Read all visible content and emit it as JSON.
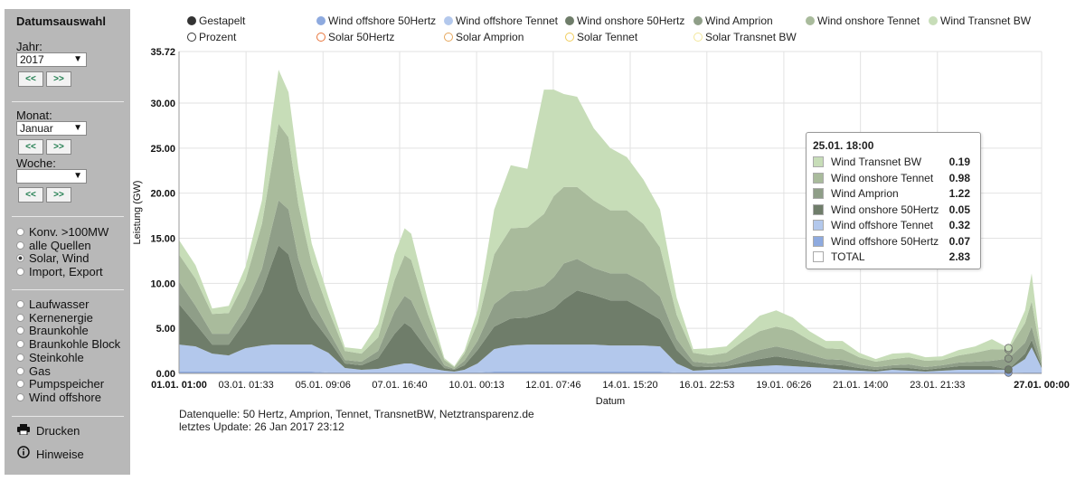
{
  "sidebar": {
    "title": "Datumsauswahl",
    "year_label": "Jahr:",
    "year_value": "2017",
    "month_label": "Monat:",
    "month_value": "Januar",
    "week_label": "Woche:",
    "week_value": "",
    "prev_label": "<<",
    "next_label": ">>",
    "source_options": [
      {
        "label": "Konv. >100MW",
        "checked": false
      },
      {
        "label": "alle Quellen",
        "checked": false
      },
      {
        "label": "Solar, Wind",
        "checked": true
      },
      {
        "label": "Import, Export",
        "checked": false
      }
    ],
    "type_options": [
      "Laufwasser",
      "Kernenergie",
      "Braunkohle",
      "Braunkohle Block",
      "Steinkohle",
      "Gas",
      "Pumpspeicher",
      "Wind offshore"
    ],
    "print_label": "Drucken",
    "hints_label": "Hinweise",
    "print_icon": "printer-icon",
    "hints_icon": "info-icon"
  },
  "legend": [
    {
      "label": "Gestapelt",
      "color": "#333333",
      "filled": true
    },
    {
      "label": "Wind offshore 50Hertz",
      "color": "#8eaadf",
      "filled": true
    },
    {
      "label": "Wind offshore Tennet",
      "color": "#b3c8ec",
      "filled": true
    },
    {
      "label": "Wind onshore 50Hertz",
      "color": "#6f7d6a",
      "filled": true
    },
    {
      "label": "Wind Amprion",
      "color": "#8f9e88",
      "filled": true
    },
    {
      "label": "Wind onshore Tennet",
      "color": "#a9bb9c",
      "filled": true
    },
    {
      "label": "Wind Transnet BW",
      "color": "#c7ddb8",
      "filled": true
    },
    {
      "label": "Prozent",
      "color": "#333333",
      "filled": false
    },
    {
      "label": "Solar 50Hertz",
      "color": "#e8743b",
      "filled": false
    },
    {
      "label": "Solar Amprion",
      "color": "#e6a65a",
      "filled": false
    },
    {
      "label": "Solar Tennet",
      "color": "#f0cc5a",
      "filled": false
    },
    {
      "label": "Solar Transnet BW",
      "color": "#f3e79a",
      "filled": false
    }
  ],
  "tooltip": {
    "title": "25.01. 18:00",
    "rows": [
      {
        "name": "Wind Transnet BW",
        "value": "0.19",
        "color": "#c7ddb8"
      },
      {
        "name": "Wind onshore Tennet",
        "value": "0.98",
        "color": "#a9bb9c"
      },
      {
        "name": "Wind Amprion",
        "value": "1.22",
        "color": "#8f9e88"
      },
      {
        "name": "Wind onshore 50Hertz",
        "value": "0.05",
        "color": "#6f7d6a"
      },
      {
        "name": "Wind offshore Tennet",
        "value": "0.32",
        "color": "#b3c8ec"
      },
      {
        "name": "Wind offshore 50Hertz",
        "value": "0.07",
        "color": "#8eaadf"
      },
      {
        "name": "TOTAL",
        "value": "2.83",
        "color": "#ffffff"
      }
    ]
  },
  "footer": {
    "source": "Datenquelle: 50 Hertz, Amprion, Tennet, TransnetBW, Netztransparenz.de",
    "updated": "letztes Update: 26 Jan 2017 23:12"
  },
  "chart_data": {
    "type": "area",
    "stacked": true,
    "xlabel": "Datum",
    "ylabel": "Leistung (GW)",
    "ylim": [
      0,
      35.72
    ],
    "yticks": [
      "0.00",
      "5.00",
      "10.00",
      "15.00",
      "20.00",
      "25.00",
      "30.00",
      "35.72"
    ],
    "xlim": [
      0,
      26
    ],
    "x_ticks": [
      {
        "label": "01.01. 01:00",
        "x": 0.0,
        "bold": true
      },
      {
        "label": "03.01. 01:33",
        "x": 2.02
      },
      {
        "label": "05.01. 09:06",
        "x": 4.34
      },
      {
        "label": "07.01. 16:40",
        "x": 6.65
      },
      {
        "label": "10.01. 00:13",
        "x": 8.97
      },
      {
        "label": "12.01. 07:46",
        "x": 11.28
      },
      {
        "label": "14.01. 15:20",
        "x": 13.6
      },
      {
        "label": "16.01. 22:53",
        "x": 15.91
      },
      {
        "label": "19.01. 06:26",
        "x": 18.23
      },
      {
        "label": "21.01. 14:00",
        "x": 20.54
      },
      {
        "label": "23.01. 21:33",
        "x": 22.86
      },
      {
        "label": "27.01. 00:00",
        "x": 26.0,
        "bold": true
      }
    ],
    "x": [
      0,
      0.5,
      1,
      1.5,
      2,
      2.5,
      2.8,
      3,
      3.3,
      3.6,
      4,
      4.5,
      5,
      5.5,
      6,
      6.5,
      6.8,
      7,
      7.5,
      8,
      8.3,
      8.6,
      9,
      9.5,
      10,
      10.5,
      11,
      11.3,
      11.6,
      12,
      12.5,
      13,
      13.5,
      14,
      14.5,
      15,
      15.5,
      16,
      16.5,
      17,
      17.5,
      18,
      18.5,
      19,
      19.5,
      20,
      20.5,
      21,
      21.5,
      22,
      22.5,
      23,
      23.5,
      24,
      24.5,
      25,
      25.5,
      25.7,
      26
    ],
    "series": [
      {
        "name": "Wind offshore 50Hertz",
        "color": "#8eaadf",
        "values": [
          0.2,
          0.2,
          0.2,
          0.2,
          0.2,
          0.2,
          0.2,
          0.2,
          0.2,
          0.2,
          0.2,
          0.1,
          0.1,
          0.1,
          0.1,
          0.1,
          0.1,
          0.1,
          0.1,
          0.1,
          0.1,
          0.1,
          0.1,
          0.2,
          0.2,
          0.2,
          0.2,
          0.2,
          0.2,
          0.2,
          0.2,
          0.2,
          0.2,
          0.2,
          0.2,
          0.1,
          0.1,
          0.1,
          0.1,
          0.1,
          0.1,
          0.1,
          0.1,
          0.1,
          0.1,
          0.1,
          0.1,
          0.1,
          0.1,
          0.1,
          0.1,
          0.1,
          0.1,
          0.1,
          0.1,
          0.07,
          0.1,
          0.1,
          0.1
        ]
      },
      {
        "name": "Wind offshore Tennet",
        "color": "#b3c8ec",
        "values": [
          3.0,
          2.8,
          2.0,
          1.8,
          2.6,
          2.9,
          3.0,
          3.0,
          3.0,
          3.0,
          3.0,
          2.2,
          0.5,
          0.3,
          0.4,
          0.8,
          1.0,
          1.0,
          0.5,
          0.2,
          0.1,
          0.3,
          1.0,
          2.5,
          2.9,
          3.0,
          3.0,
          3.0,
          3.0,
          3.0,
          3.0,
          2.9,
          2.9,
          2.9,
          2.8,
          1.0,
          0.2,
          0.3,
          0.4,
          0.6,
          0.7,
          0.8,
          0.7,
          0.6,
          0.5,
          0.3,
          0.2,
          0.1,
          0.3,
          0.2,
          0.1,
          0.2,
          0.3,
          0.3,
          0.3,
          0.32,
          1.5,
          2.8,
          0.5
        ]
      },
      {
        "name": "Wind onshore 50Hertz",
        "color": "#6f7d6a",
        "values": [
          4.5,
          2.5,
          1.0,
          1.2,
          3.0,
          6.0,
          9.0,
          11.0,
          10.0,
          6.0,
          3.0,
          1.5,
          0.5,
          0.5,
          1.2,
          3.5,
          4.5,
          4.0,
          2.0,
          0.3,
          0.2,
          0.5,
          1.5,
          2.5,
          3.0,
          3.0,
          3.5,
          4.0,
          5.0,
          6.0,
          5.5,
          5.0,
          5.0,
          4.0,
          3.0,
          1.5,
          0.5,
          0.3,
          0.3,
          0.5,
          0.8,
          1.0,
          0.8,
          0.6,
          0.4,
          0.5,
          0.3,
          0.2,
          0.2,
          0.3,
          0.2,
          0.3,
          0.4,
          0.4,
          0.4,
          0.05,
          0.6,
          0.8,
          0.2
        ]
      },
      {
        "name": "Wind Amprion",
        "color": "#8f9e88",
        "values": [
          2.5,
          2.0,
          1.2,
          1.2,
          1.5,
          2.5,
          4.0,
          5.0,
          5.0,
          3.5,
          2.0,
          1.0,
          0.4,
          0.4,
          0.8,
          2.5,
          3.0,
          3.0,
          1.5,
          0.3,
          0.1,
          0.5,
          1.0,
          2.5,
          3.0,
          3.0,
          3.0,
          3.5,
          4.0,
          3.5,
          3.0,
          3.0,
          3.0,
          3.0,
          2.5,
          1.2,
          0.5,
          0.4,
          0.5,
          0.8,
          1.0,
          1.1,
          1.0,
          0.8,
          0.6,
          0.6,
          0.4,
          0.3,
          0.3,
          0.4,
          0.3,
          0.3,
          0.4,
          0.5,
          0.6,
          1.22,
          1.2,
          1.5,
          0.3
        ]
      },
      {
        "name": "Wind onshore Tennet",
        "color": "#a9bb9c",
        "values": [
          3.0,
          3.0,
          2.2,
          2.3,
          3.0,
          5.0,
          7.0,
          8.5,
          8.0,
          6.0,
          4.0,
          2.3,
          1.0,
          0.9,
          1.5,
          3.5,
          4.5,
          4.5,
          2.5,
          0.6,
          0.2,
          0.8,
          2.0,
          5.5,
          7.0,
          7.0,
          8.0,
          9.0,
          8.5,
          8.0,
          7.5,
          7.0,
          7.0,
          6.5,
          5.5,
          2.7,
          1.0,
          0.9,
          1.0,
          1.6,
          2.1,
          2.2,
          2.2,
          1.6,
          1.2,
          1.2,
          0.8,
          0.6,
          0.7,
          0.8,
          0.7,
          0.6,
          0.8,
          1.0,
          1.3,
          0.98,
          2.2,
          2.8,
          0.7
        ]
      },
      {
        "name": "Wind Transnet BW",
        "color": "#c7ddb8",
        "values": [
          1.6,
          1.5,
          0.6,
          0.8,
          1.5,
          2.6,
          5.2,
          6.0,
          5.0,
          4.0,
          2.2,
          1.4,
          0.4,
          0.5,
          1.5,
          2.8,
          3.0,
          2.9,
          1.5,
          0.2,
          0.1,
          0.3,
          1.4,
          5.0,
          7.0,
          6.5,
          13.8,
          11.8,
          10.3,
          10.0,
          8.0,
          6.9,
          5.9,
          4.9,
          4.2,
          1.9,
          0.4,
          0.8,
          0.7,
          1.1,
          1.7,
          1.8,
          1.4,
          1.0,
          0.8,
          0.9,
          0.5,
          0.3,
          0.6,
          0.5,
          0.4,
          0.4,
          0.6,
          0.7,
          1.1,
          0.19,
          1.4,
          3.1,
          0.1
        ]
      }
    ]
  }
}
